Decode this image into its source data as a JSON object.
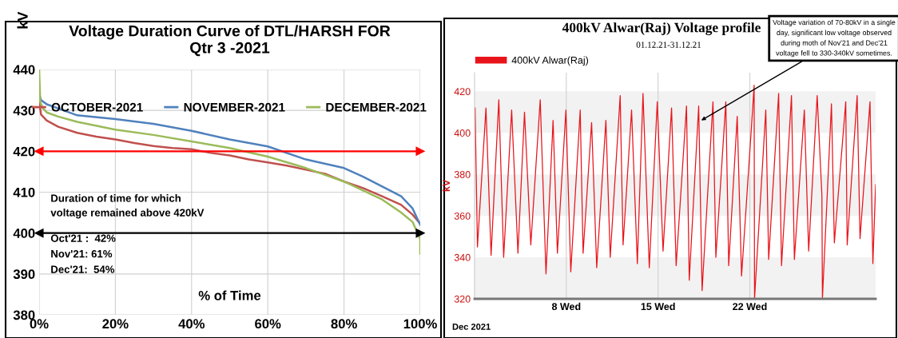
{
  "chart_data": [
    {
      "type": "line",
      "title": "Voltage Duration Curve of DTL/HARSH FOR\nQtr 3 -2021",
      "xlabel": "% of Time",
      "ylabel": "kV",
      "xlim": [
        0,
        100
      ],
      "ylim": [
        380,
        440
      ],
      "xticks": [
        {
          "value": 0,
          "label": "0%"
        },
        {
          "value": 20,
          "label": "20%"
        },
        {
          "value": 40,
          "label": "40%"
        },
        {
          "value": 60,
          "label": "60%"
        },
        {
          "value": 80,
          "label": "80%"
        },
        {
          "value": 100,
          "label": "100%"
        }
      ],
      "yticks": [
        380,
        390,
        400,
        410,
        420,
        430,
        440
      ],
      "grid": true,
      "legend": "top",
      "series": [
        {
          "name": "OCTOBER-2021",
          "color": "#c0504d",
          "x": [
            0,
            0.5,
            2,
            5,
            10,
            15,
            20,
            25,
            30,
            35,
            40,
            45,
            50,
            55,
            60,
            65,
            70,
            75,
            80,
            85,
            90,
            95,
            98,
            100
          ],
          "values": [
            432,
            429,
            427.5,
            426,
            424.5,
            423.6,
            422.9,
            422,
            421.3,
            420.8,
            420.5,
            419.6,
            419,
            418,
            417.3,
            416.5,
            415.5,
            414.5,
            412.6,
            411,
            409,
            406.9,
            404.5,
            402.3
          ]
        },
        {
          "name": "NOVEMBER-2021",
          "color": "#4f81bd",
          "x": [
            0,
            0.5,
            2,
            5,
            10,
            20,
            30,
            40,
            50,
            60,
            70,
            80,
            85,
            90,
            95,
            98,
            100
          ],
          "values": [
            434,
            432.5,
            431.5,
            430.5,
            428.8,
            427.9,
            426.7,
            425,
            422.9,
            421.2,
            418,
            415.9,
            413.8,
            411.4,
            409,
            406,
            402
          ]
        },
        {
          "name": "DECEMBER-2021",
          "color": "#9bbb59",
          "x": [
            0,
            0.3,
            1,
            2,
            5,
            10,
            20,
            30,
            40,
            50,
            60,
            70,
            80,
            90,
            95,
            98,
            100,
            100
          ],
          "values": [
            440,
            432,
            430.5,
            429.5,
            428.5,
            427.2,
            425.3,
            424,
            422.4,
            420.8,
            418.7,
            415.9,
            412.6,
            408.2,
            405,
            402.7,
            398.5,
            395
          ]
        }
      ],
      "ref_lines": [
        {
          "axis": "y",
          "value": 420,
          "color": "#ff0000"
        },
        {
          "axis": "y",
          "value": 400,
          "color": "#000000"
        }
      ],
      "annotations": [
        "Duration of time for which\nvoltage remained above 420kV",
        "Oct'21 :  42%",
        "Nov'21: 61%",
        "Dec'21:  54%"
      ]
    },
    {
      "type": "line",
      "title": "400kV Alwar(Raj) Voltage profile",
      "subtitle": "01.12.21-31.12.21",
      "ylabel": "kV",
      "xlim": [
        1,
        31.6
      ],
      "ylim": [
        320,
        429
      ],
      "xticks": [
        {
          "value": 8,
          "label": "8 Wed"
        },
        {
          "value": 15,
          "label": "15 Wed"
        },
        {
          "value": 22,
          "label": "22 Wed"
        }
      ],
      "yticks": [
        320,
        340,
        360,
        380,
        400,
        420
      ],
      "grid": "x",
      "legend": "top left",
      "bands": [
        {
          "axis": "y",
          "from": 320,
          "to": 340,
          "color": "#f2f2f2"
        },
        {
          "axis": "y",
          "from": 360,
          "to": 380,
          "color": "#f2f2f2"
        },
        {
          "axis": "y",
          "from": 400,
          "to": 420,
          "color": "#f2f2f2"
        }
      ],
      "series": [
        {
          "name": "400kV Alwar(Raj)",
          "color": "#e8141b",
          "x": [
            1.04,
            1.22,
            1.87,
            2.26,
            2.85,
            3.22,
            3.83,
            4.31,
            4.81,
            5.29,
            6.01,
            6.45,
            6.99,
            7.32,
            7.97,
            8.34,
            9.06,
            9.28,
            9.93,
            10.32,
            11.02,
            11.35,
            12.11,
            12.33,
            12.98,
            13.42,
            13.85,
            14.33,
            14.94,
            15.38,
            16.03,
            16.38,
            17.17,
            17.38,
            18.1,
            18.36,
            19.19,
            19.41,
            20.17,
            20.39,
            21.04,
            21.37,
            22.2,
            22.33,
            22.36,
            23.22,
            23.44,
            24.2,
            24.42,
            25.18,
            25.4,
            26.16,
            26.49,
            27.14,
            27.5,
            27.54,
            28.23,
            28.45,
            29.32,
            29.43,
            30.19,
            30.41,
            31.17,
            31.39,
            31.6
          ],
          "values": [
            412,
            345,
            412,
            341,
            416,
            340,
            411,
            342,
            410,
            346,
            416,
            332,
            406,
            342,
            411,
            333,
            411,
            342,
            405,
            335,
            406,
            340,
            418,
            346,
            411,
            337,
            419,
            335,
            415,
            343,
            412,
            336,
            413,
            329,
            413,
            324,
            415,
            340,
            415,
            336,
            408,
            331,
            410,
            423,
            320,
            411,
            339,
            419,
            336,
            418,
            339,
            411,
            343,
            418,
            370,
            320,
            414,
            347,
            415,
            346,
            418,
            349,
            415,
            337,
            375
          ]
        }
      ],
      "annotations": [
        {
          "text": "Voltage variation of 70-80kV in a single\nday, significant low voltage observed\nduring moth of Nov'21 and Dec'21\nvoltage fell to 330-340kV sometimes.",
          "x": 18.3,
          "y": 406
        },
        "Dec 2021"
      ]
    }
  ]
}
